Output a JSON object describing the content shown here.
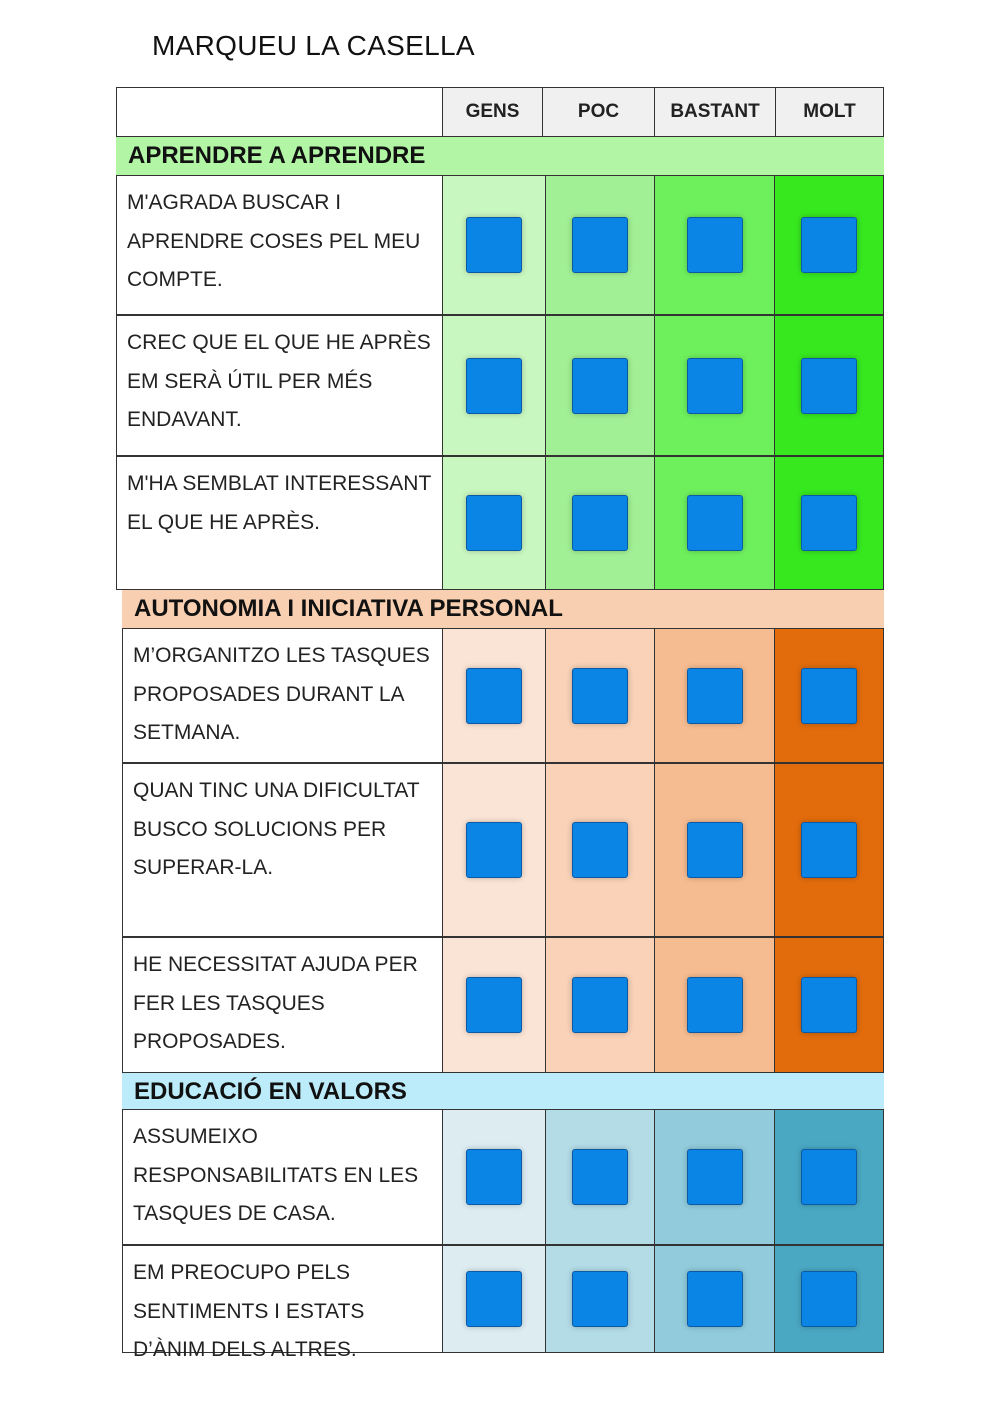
{
  "title": "MARQUEU LA CASELLA",
  "columns": [
    "GENS",
    "POC",
    "BASTANT",
    "MOLT"
  ],
  "sections": [
    {
      "name": "APRENDRE A APRENDRE",
      "header_color": "#b1f5a5",
      "column_colors": [
        "#c9f7c0",
        "#a2f095",
        "#6ef05d",
        "#37e81f"
      ],
      "questions": [
        "M'AGRADA BUSCAR I APRENDRE COSES PEL MEU COMPTE.",
        "CREC QUE EL QUE HE APRÈS EM SERÀ ÚTIL PER MÉS ENDAVANT.",
        "M'HA SEMBLAT INTERESSANT EL QUE HE APRÈS."
      ]
    },
    {
      "name": "AUTONOMIA I INICIATIVA PERSONAL",
      "header_color": "#f8cfb0",
      "column_colors": [
        "#fae4d5",
        "#f9d2b7",
        "#f6bc91",
        "#e26c0c"
      ],
      "questions": [
        "M’ORGANITZO LES TASQUES PROPOSADES DURANT LA SETMANA.",
        "QUAN TINC UNA DIFICULTAT BUSCO SOLUCIONS PER SUPERAR-LA.",
        "HE NECESSITAT AJUDA PER FER LES TASQUES PROPOSADES."
      ]
    },
    {
      "name": "EDUCACIÓ EN VALORS",
      "header_color": "#bcecf9",
      "column_colors": [
        "#dcecf1",
        "#b3dce7",
        "#91cbdc",
        "#4aa8c3"
      ],
      "questions": [
        "ASSUMEIXO RESPONSABILITATS EN LES TASQUES DE CASA.",
        "EM PREOCUPO PELS SENTIMENTS I ESTATS D’ÀNIM DELS ALTRES."
      ]
    }
  ],
  "checkbox_color": "#0a85e6"
}
